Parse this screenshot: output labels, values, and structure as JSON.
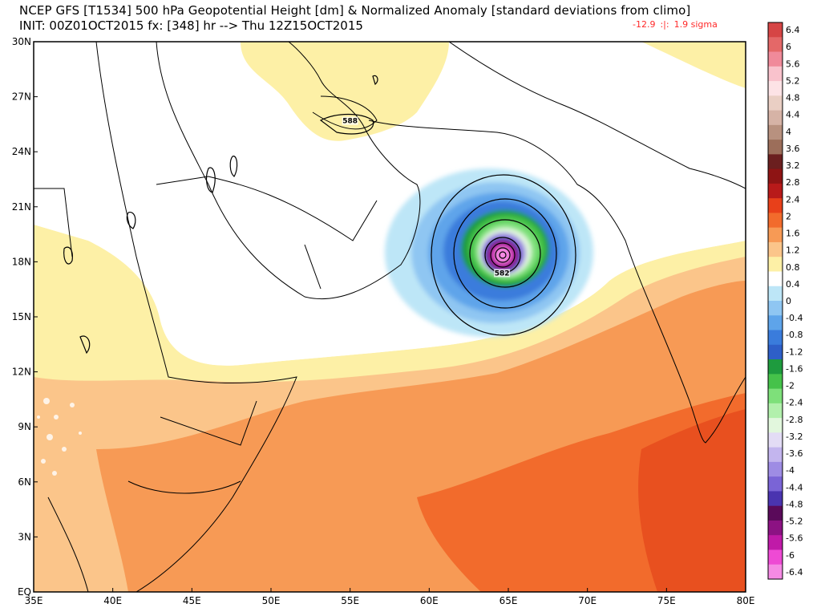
{
  "header": {
    "title_line1": "NCEP GFS [T1534] 500 hPa Geopotential Height [dm] & Normalized Anomaly [standard deviations from climo]",
    "title_line2": "INIT: 00Z01OCT2015 fx: [348] hr --> Thu 12Z15OCT2015",
    "range_min": "-12.9",
    "range_sep": ":|:",
    "range_max": "1.9 sigma"
  },
  "axes": {
    "lon_labels": [
      "35E",
      "40E",
      "45E",
      "50E",
      "55E",
      "60E",
      "65E",
      "70E",
      "75E",
      "80E"
    ],
    "lat_labels": [
      "EQ",
      "3N",
      "6N",
      "9N",
      "12N",
      "15N",
      "18N",
      "21N",
      "24N",
      "27N",
      "30N"
    ],
    "lon_range": [
      35,
      80
    ],
    "lat_range": [
      0,
      30
    ]
  },
  "contour_labels": [
    {
      "text": "588",
      "lon": 55.0,
      "lat": 25.6
    },
    {
      "text": "582",
      "lon": 64.6,
      "lat": 17.3
    }
  ],
  "colorbar": {
    "levels": [
      "6.4",
      "6",
      "5.6",
      "5.2",
      "4.8",
      "4.4",
      "4",
      "3.6",
      "3.2",
      "2.8",
      "2.4",
      "2",
      "1.6",
      "1.2",
      "0.8",
      "0.4",
      "0",
      "-0.4",
      "-0.8",
      "-1.2",
      "-1.6",
      "-2",
      "-2.4",
      "-2.8",
      "-3.2",
      "-3.6",
      "-4",
      "-4.4",
      "-4.8",
      "-5.2",
      "-5.6",
      "-6",
      "-6.4"
    ],
    "colors": [
      "#d64545",
      "#e46868",
      "#f08a9a",
      "#f9c2cc",
      "#fde3e6",
      "#eacfc4",
      "#d6b3a6",
      "#b8917f",
      "#9c6e5a",
      "#6b1f1f",
      "#8e1414",
      "#b81a1a",
      "#e8401a",
      "#f26b2c",
      "#f79a55",
      "#fbc58a",
      "#fdf0a6",
      "#ffffff",
      "#bde6f7",
      "#8fc6f2",
      "#5ea4ea",
      "#3a7cdc",
      "#2e5fc8",
      "#1e9b3e",
      "#45c24a",
      "#7ee07a",
      "#b2f0ac",
      "#e2f7dd",
      "#e3dcf5",
      "#c3b5ee",
      "#9e8ce4",
      "#7a64d6",
      "#4a34b0",
      "#5a0a5a",
      "#8c1283",
      "#c01aa8",
      "#ee4ad4",
      "#f58ae4"
    ]
  }
}
